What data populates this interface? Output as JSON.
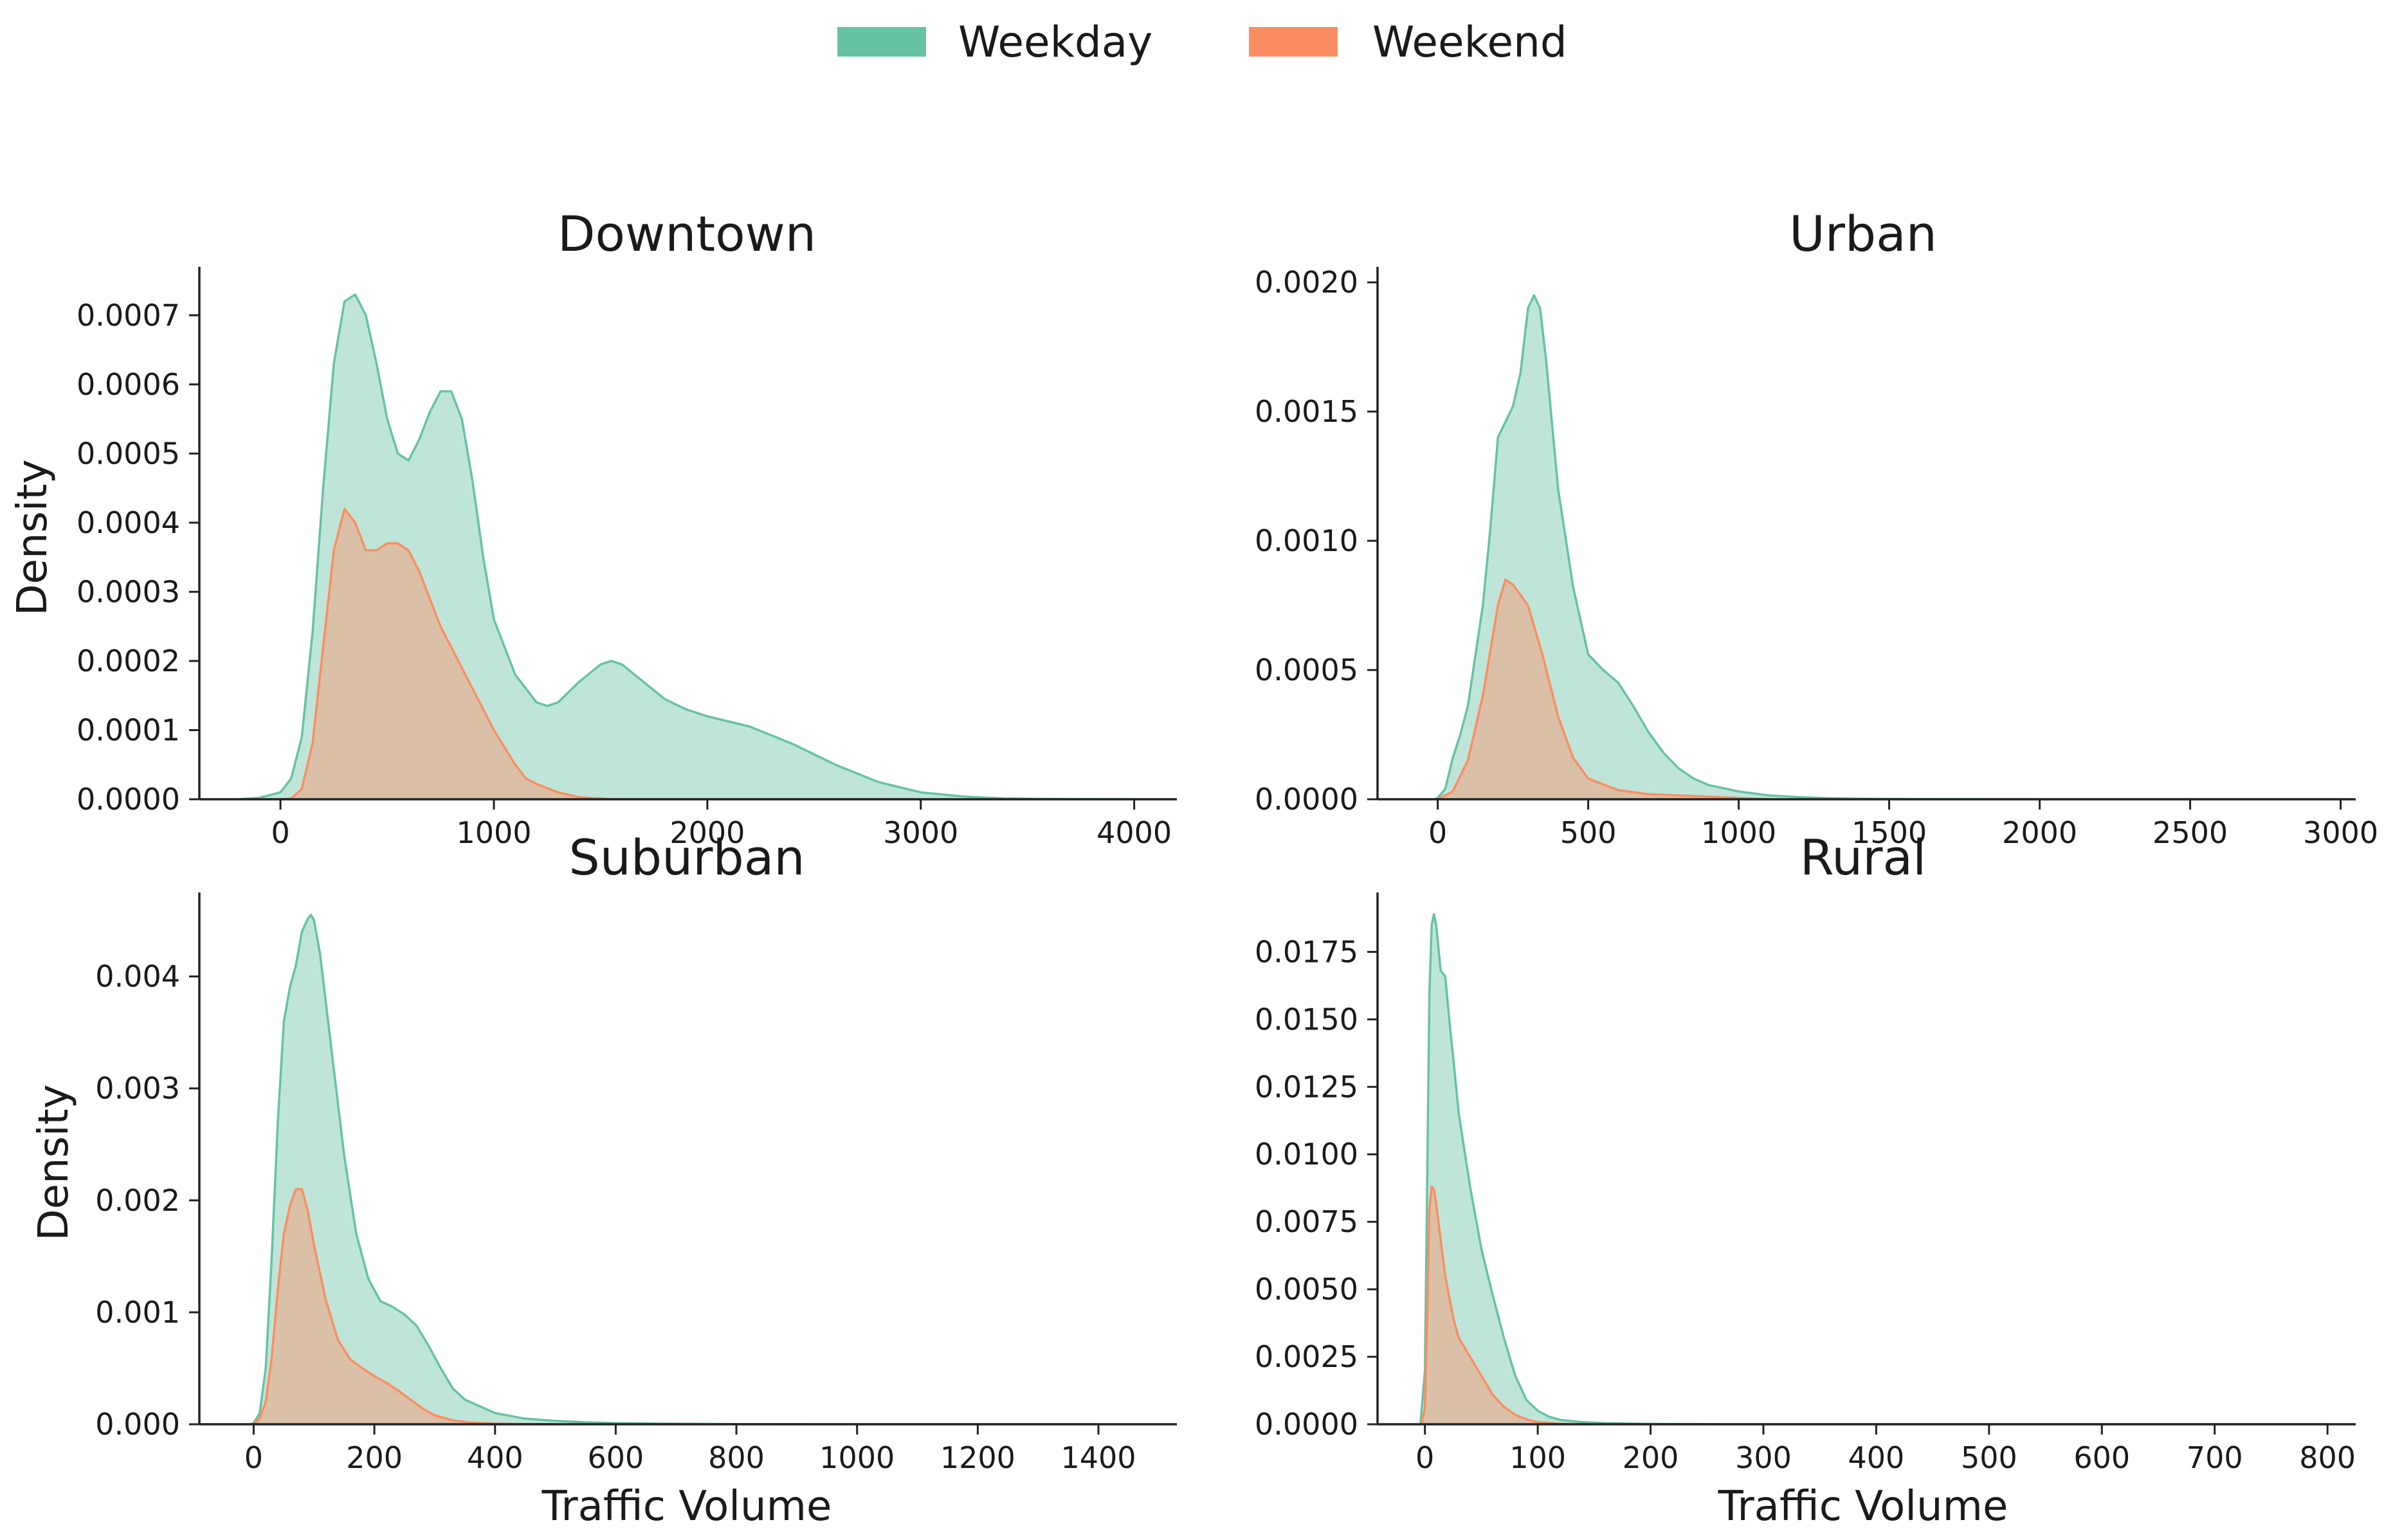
{
  "legend": [
    {
      "label": "Weekday",
      "color": "#66c2a5"
    },
    {
      "label": "Weekend",
      "color": "#fc8d62"
    }
  ],
  "chart_data": [
    {
      "type": "area",
      "title": "Downtown",
      "xlabel": "",
      "ylabel": "Density",
      "xlim": [
        -380,
        4200
      ],
      "ylim": [
        0,
        0.00077
      ],
      "xticks": [
        0,
        1000,
        2000,
        3000,
        4000
      ],
      "xtick_labels": [
        "0",
        "1000",
        "2000",
        "3000",
        "4000"
      ],
      "yticks": [
        0,
        0.0001,
        0.0002,
        0.0003,
        0.0004,
        0.0005,
        0.0006,
        0.0007
      ],
      "ytick_labels": [
        "0.0000",
        "0.0001",
        "0.0002",
        "0.0003",
        "0.0004",
        "0.0005",
        "0.0006",
        "0.0007"
      ],
      "series": [
        {
          "name": "Weekday",
          "x": [
            -200,
            -100,
            0,
            50,
            100,
            150,
            200,
            250,
            300,
            350,
            400,
            450,
            500,
            550,
            600,
            650,
            700,
            750,
            800,
            850,
            900,
            950,
            1000,
            1100,
            1200,
            1250,
            1300,
            1400,
            1500,
            1550,
            1600,
            1700,
            1800,
            1900,
            2000,
            2200,
            2400,
            2600,
            2800,
            3000,
            3200,
            3400,
            3600,
            3800,
            4000
          ],
          "y": [
            0,
            2e-06,
            1e-05,
            3e-05,
            9e-05,
            0.00024,
            0.00045,
            0.00063,
            0.00072,
            0.00073,
            0.0007,
            0.00063,
            0.00055,
            0.0005,
            0.00049,
            0.00052,
            0.00056,
            0.00059,
            0.00059,
            0.00055,
            0.00046,
            0.00035,
            0.00026,
            0.00018,
            0.00014,
            0.000135,
            0.00014,
            0.00017,
            0.000195,
            0.0002,
            0.000195,
            0.00017,
            0.000145,
            0.00013,
            0.00012,
            0.000105,
            8e-05,
            5e-05,
            2.5e-05,
            1e-05,
            4e-06,
            1e-06,
            5e-07,
            2e-07,
            0
          ]
        },
        {
          "name": "Weekend",
          "x": [
            0,
            50,
            100,
            150,
            200,
            250,
            300,
            350,
            400,
            450,
            500,
            550,
            600,
            650,
            700,
            750,
            800,
            900,
            1000,
            1100,
            1150,
            1200,
            1300,
            1400,
            1500,
            1550
          ],
          "y": [
            0,
            1e-06,
            1.5e-05,
            8e-05,
            0.00022,
            0.00036,
            0.00042,
            0.0004,
            0.00036,
            0.00036,
            0.00037,
            0.00037,
            0.00036,
            0.00033,
            0.00029,
            0.00025,
            0.00022,
            0.00016,
            0.0001,
            5e-05,
            3e-05,
            2.2e-05,
            1e-05,
            3e-06,
            1e-06,
            0
          ]
        }
      ]
    },
    {
      "type": "area",
      "title": "Urban",
      "xlabel": "",
      "ylabel": "",
      "xlim": [
        -200,
        3050
      ],
      "ylim": [
        0,
        0.00206
      ],
      "xticks": [
        0,
        500,
        1000,
        1500,
        2000,
        2500,
        3000
      ],
      "xtick_labels": [
        "0",
        "500",
        "1000",
        "1500",
        "2000",
        "2500",
        "3000"
      ],
      "yticks": [
        0,
        0.0005,
        0.001,
        0.0015,
        0.002
      ],
      "ytick_labels": [
        "0.0000",
        "0.0005",
        "0.0010",
        "0.0015",
        "0.0020"
      ],
      "series": [
        {
          "name": "Weekday",
          "x": [
            -10,
            0,
            25,
            50,
            75,
            100,
            150,
            175,
            200,
            250,
            275,
            300,
            320,
            340,
            360,
            400,
            450,
            500,
            550,
            600,
            650,
            700,
            750,
            800,
            850,
            900,
            1000,
            1100,
            1200,
            1300,
            1400,
            1600,
            1800,
            2000,
            2500,
            3000
          ],
          "y": [
            0,
            5e-06,
            4e-05,
            0.00016,
            0.00025,
            0.00036,
            0.00075,
            0.00105,
            0.0014,
            0.00152,
            0.00165,
            0.0019,
            0.00195,
            0.0019,
            0.0017,
            0.0012,
            0.00082,
            0.00056,
            0.0005,
            0.00045,
            0.00036,
            0.00026,
            0.00018,
            0.00012,
            8e-05,
            5.5e-05,
            3e-05,
            1.5e-05,
            8e-06,
            4e-06,
            2e-06,
            8e-07,
            3e-07,
            1e-07,
            5e-08,
            0
          ]
        },
        {
          "name": "Weekend",
          "x": [
            0,
            50,
            100,
            150,
            200,
            225,
            250,
            300,
            350,
            400,
            450,
            500,
            600,
            700,
            800,
            900,
            1000,
            1100
          ],
          "y": [
            0,
            3e-05,
            0.00015,
            0.0004,
            0.00075,
            0.00085,
            0.00083,
            0.00075,
            0.00055,
            0.00032,
            0.00016,
            8e-05,
            3.5e-05,
            2e-05,
            1.5e-05,
            1e-05,
            5e-06,
            0
          ]
        }
      ]
    },
    {
      "type": "area",
      "title": "Suburban",
      "xlabel": "Traffic Volume",
      "ylabel": "Density",
      "xlim": [
        -90,
        1530
      ],
      "ylim": [
        0,
        0.00475
      ],
      "xticks": [
        0,
        200,
        400,
        600,
        800,
        1000,
        1200,
        1400
      ],
      "xtick_labels": [
        "0",
        "200",
        "400",
        "600",
        "800",
        "1000",
        "1200",
        "1400"
      ],
      "yticks": [
        0,
        0.001,
        0.002,
        0.003,
        0.004
      ],
      "ytick_labels": [
        "0.000",
        "0.001",
        "0.002",
        "0.003",
        "0.004"
      ],
      "series": [
        {
          "name": "Weekday",
          "x": [
            -5,
            0,
            10,
            20,
            30,
            40,
            50,
            60,
            70,
            80,
            90,
            95,
            100,
            110,
            130,
            150,
            170,
            190,
            210,
            230,
            250,
            270,
            290,
            310,
            330,
            350,
            400,
            450,
            500,
            550,
            600,
            700,
            800,
            1000,
            1200,
            1400
          ],
          "y": [
            0,
            1e-05,
            0.0001,
            0.0005,
            0.0015,
            0.0027,
            0.0036,
            0.0039,
            0.0041,
            0.0044,
            0.00452,
            0.00455,
            0.0045,
            0.0042,
            0.0033,
            0.0024,
            0.0017,
            0.0013,
            0.0011,
            0.00105,
            0.00098,
            0.00088,
            0.0007,
            0.0005,
            0.00032,
            0.00022,
            0.0001,
            5e-05,
            3e-05,
            1.8e-05,
            1e-05,
            4e-06,
            2e-06,
            5e-07,
            1e-07,
            0
          ]
        },
        {
          "name": "Weekend",
          "x": [
            0,
            10,
            20,
            30,
            40,
            50,
            60,
            70,
            80,
            90,
            100,
            120,
            140,
            160,
            180,
            200,
            220,
            240,
            260,
            280,
            300,
            330,
            360,
            400,
            450,
            500
          ],
          "y": [
            0,
            5e-05,
            0.0002,
            0.0006,
            0.0012,
            0.0017,
            0.00195,
            0.0021,
            0.0021,
            0.0019,
            0.0016,
            0.0011,
            0.00075,
            0.00058,
            0.0005,
            0.00043,
            0.00037,
            0.0003,
            0.00022,
            0.00014,
            8e-05,
            3.5e-05,
            1.5e-05,
            5e-06,
            1e-06,
            0
          ]
        }
      ]
    },
    {
      "type": "area",
      "title": "Rural",
      "xlabel": "Traffic Volume",
      "ylabel": "",
      "xlim": [
        -42,
        825
      ],
      "ylim": [
        0,
        0.0197
      ],
      "xticks": [
        0,
        100,
        200,
        300,
        400,
        500,
        600,
        700,
        800
      ],
      "xtick_labels": [
        "0",
        "100",
        "200",
        "300",
        "400",
        "500",
        "600",
        "700",
        "800"
      ],
      "yticks": [
        0,
        0.0025,
        0.005,
        0.0075,
        0.01,
        0.0125,
        0.015,
        0.0175
      ],
      "ytick_labels": [
        "0.0000",
        "0.0025",
        "0.0050",
        "0.0075",
        "0.0100",
        "0.0125",
        "0.0150",
        "0.0175"
      ],
      "series": [
        {
          "name": "Weekday",
          "x": [
            -4,
            0,
            2,
            4,
            6,
            8,
            10,
            14,
            18,
            22,
            26,
            30,
            40,
            50,
            60,
            70,
            80,
            90,
            100,
            110,
            120,
            140,
            160,
            200,
            250,
            300,
            400,
            500,
            600,
            700,
            800
          ],
          "y": [
            0,
            0.002,
            0.009,
            0.016,
            0.0185,
            0.0189,
            0.0185,
            0.0168,
            0.0166,
            0.0148,
            0.0132,
            0.0115,
            0.0088,
            0.0065,
            0.0048,
            0.0032,
            0.0018,
            0.0009,
            0.0005,
            0.00028,
            0.00016,
            8e-05,
            4e-05,
            1.2e-05,
            4e-06,
            1.5e-06,
            4e-07,
            1e-07,
            5e-08,
            2e-08,
            0
          ]
        },
        {
          "name": "Weekend",
          "x": [
            -3,
            0,
            2,
            4,
            6,
            8,
            10,
            14,
            18,
            22,
            26,
            30,
            40,
            50,
            60,
            70,
            80,
            90,
            100,
            120,
            150
          ],
          "y": [
            0,
            0.0006,
            0.004,
            0.008,
            0.0088,
            0.0087,
            0.0082,
            0.0068,
            0.0055,
            0.0046,
            0.0038,
            0.0032,
            0.0025,
            0.0018,
            0.0011,
            0.00065,
            0.00035,
            0.00018,
            8e-05,
            2e-05,
            0
          ]
        }
      ]
    }
  ]
}
